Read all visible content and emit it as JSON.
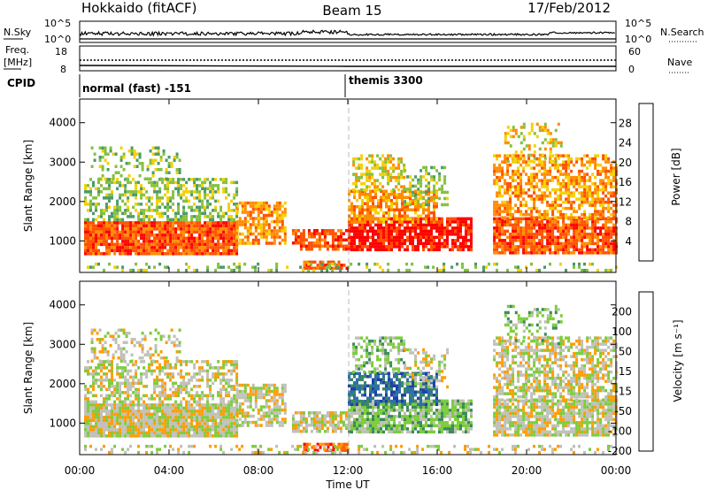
{
  "header": {
    "station": "Hokkaido (fitACF)",
    "beam": "Beam 15",
    "date": "17/Feb/2012"
  },
  "top_panels": {
    "nsky_label": "N.Sky",
    "nsky_tick_top": "10^5",
    "nsky_tick_bottom": "10^0",
    "nsearch_label": "N.Search",
    "freq_label_1": "Freq.",
    "freq_label_2": "[MHz]",
    "freq_ticks": [
      "18",
      "8"
    ],
    "nave_label": "Nave",
    "nave_ticks": [
      "60",
      "0"
    ],
    "cpid_label": "CPID",
    "cpid_modes": [
      "normal (fast) -151",
      "themis 3300"
    ]
  },
  "chart_data": [
    {
      "type": "heatmap",
      "name": "power",
      "ylabel": "Slant Range [km]",
      "yticks": [
        1000,
        2000,
        3000,
        4000
      ],
      "ylim": [
        200,
        4600
      ],
      "colorbar_label": "Power [dB]",
      "colorbar_ticks": [
        "28",
        "24",
        "20",
        "16",
        "12",
        "8",
        "4"
      ],
      "colors": [
        "#0000ff",
        "#2858a8",
        "#4a9a6a",
        "#84c040",
        "#f4d000",
        "#ff8c00",
        "#ff5000",
        "#ff0000"
      ]
    },
    {
      "type": "heatmap",
      "name": "velocity",
      "ylabel": "Slant Range [km]",
      "yticks": [
        1000,
        2000,
        3000,
        4000
      ],
      "ylim": [
        200,
        4600
      ],
      "colorbar_label": "Velocity [m s⁻¹]",
      "colorbar_ticks": [
        "200",
        "100",
        "50",
        "15",
        "-15",
        "-50",
        "-100",
        "-200"
      ],
      "colors": [
        "#2040a8",
        "#3070a8",
        "#3a8a5a",
        "#7ccc3c",
        "#c0c0b8",
        "#ff9c00",
        "#ff6000",
        "#ff0000"
      ]
    }
  ],
  "xaxis": {
    "label": "Time UT",
    "ticks": [
      "00:00",
      "04:00",
      "08:00",
      "12:00",
      "16:00",
      "20:00",
      "00:00"
    ]
  }
}
